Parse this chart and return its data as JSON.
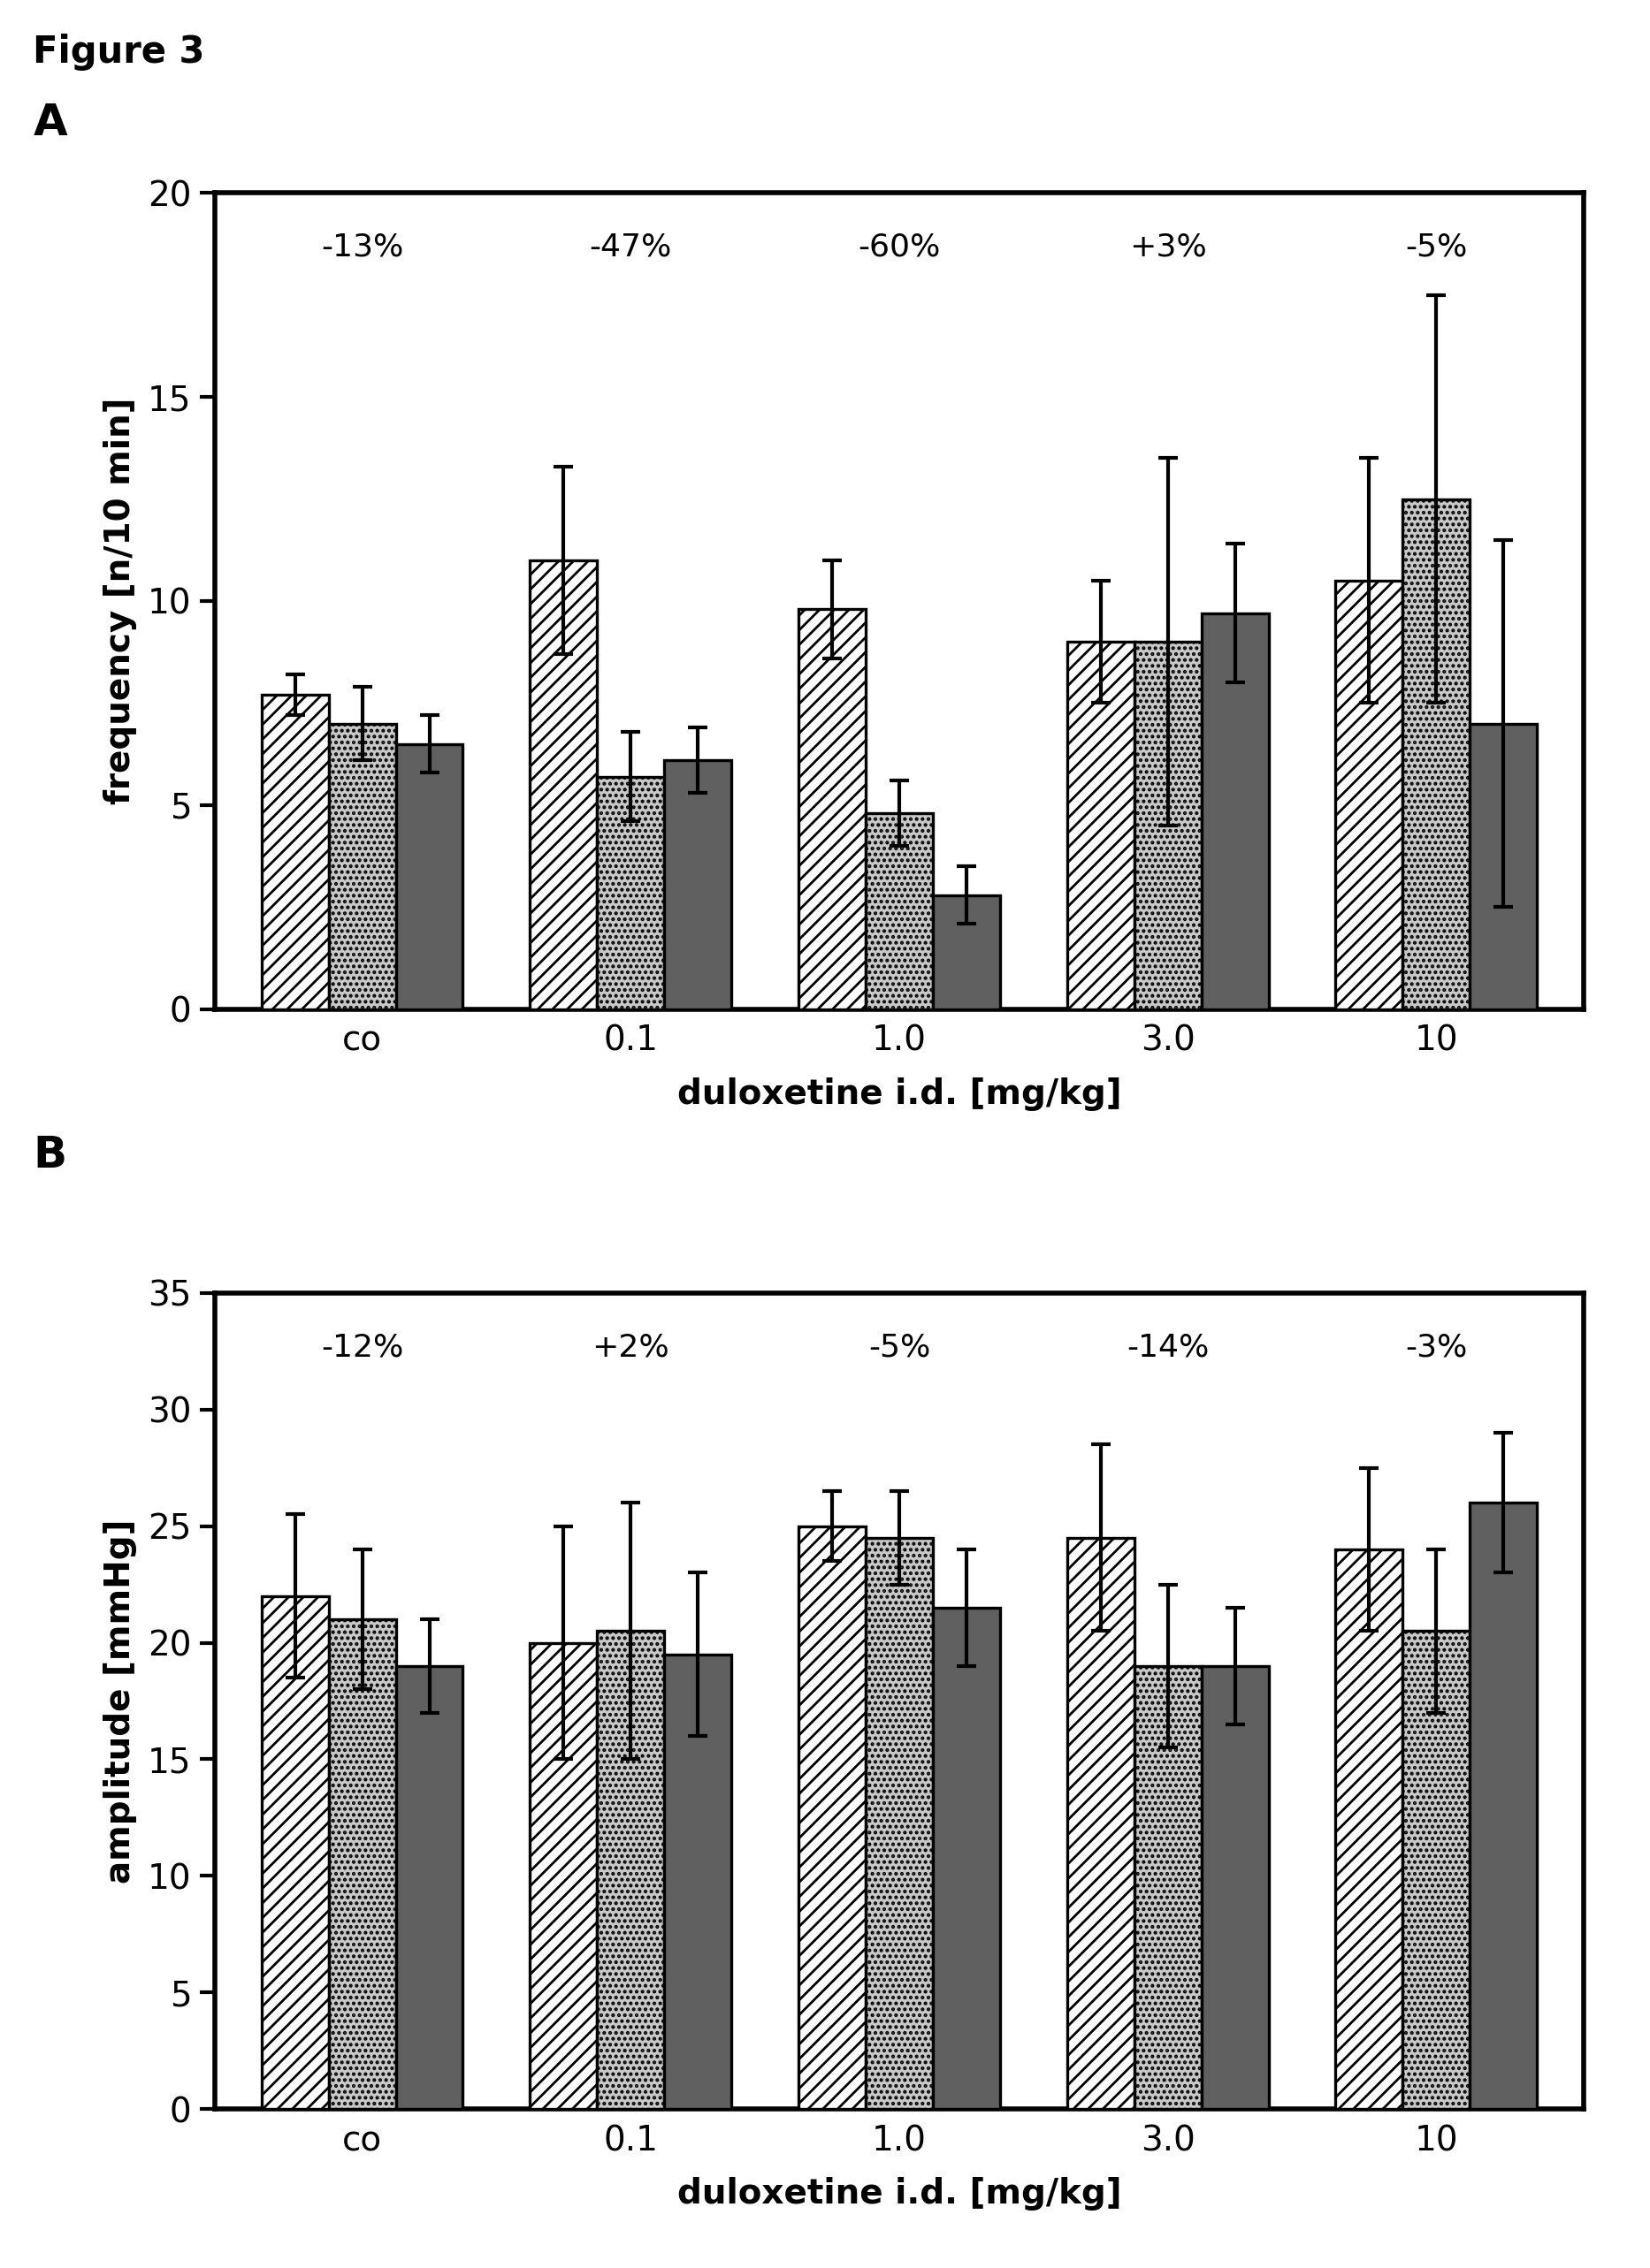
{
  "figure_label": "Figure 3",
  "panel_A_label": "A",
  "panel_B_label": "B",
  "categories": [
    "co",
    "0.1",
    "1.0",
    "3.0",
    "10"
  ],
  "xlabel": "duloxetine i.d. [mg/kg]",
  "A": {
    "ylabel": "frequency [n/10 min]",
    "ylim": [
      0,
      20
    ],
    "yticks": [
      0,
      5,
      10,
      15,
      20
    ],
    "percent_labels": [
      "-13%",
      "-47%",
      "-60%",
      "+3%",
      "-5%"
    ],
    "bars": [
      [
        7.7,
        11.0,
        9.8,
        9.0,
        10.5
      ],
      [
        7.0,
        5.7,
        4.8,
        9.0,
        12.5
      ],
      [
        6.5,
        6.1,
        2.8,
        9.7,
        7.0
      ]
    ],
    "errors": [
      [
        0.5,
        2.3,
        1.2,
        1.5,
        3.0
      ],
      [
        0.9,
        1.1,
        0.8,
        4.5,
        5.0
      ],
      [
        0.7,
        0.8,
        0.7,
        1.7,
        4.5
      ]
    ]
  },
  "B": {
    "ylabel": "amplitude [mmHg]",
    "ylim": [
      0,
      35
    ],
    "yticks": [
      0,
      5,
      10,
      15,
      20,
      25,
      30,
      35
    ],
    "percent_labels": [
      "-12%",
      "+2%",
      "-5%",
      "-14%",
      "-3%"
    ],
    "bars": [
      [
        22.0,
        20.0,
        25.0,
        24.5,
        24.0
      ],
      [
        21.0,
        20.5,
        24.5,
        19.0,
        20.5
      ],
      [
        19.0,
        19.5,
        21.5,
        19.0,
        26.0
      ]
    ],
    "errors": [
      [
        3.5,
        5.0,
        1.5,
        4.0,
        3.5
      ],
      [
        3.0,
        5.5,
        2.0,
        3.5,
        3.5
      ],
      [
        2.0,
        3.5,
        2.5,
        2.5,
        3.0
      ]
    ]
  },
  "bar_width": 0.25,
  "background_color": "#ffffff",
  "bar_colors": [
    "#ffffff",
    "#c8c8c8",
    "#606060"
  ],
  "bar_hatch_patterns": [
    "////",
    ".....",
    ""
  ],
  "bar_edgecolor": "black"
}
